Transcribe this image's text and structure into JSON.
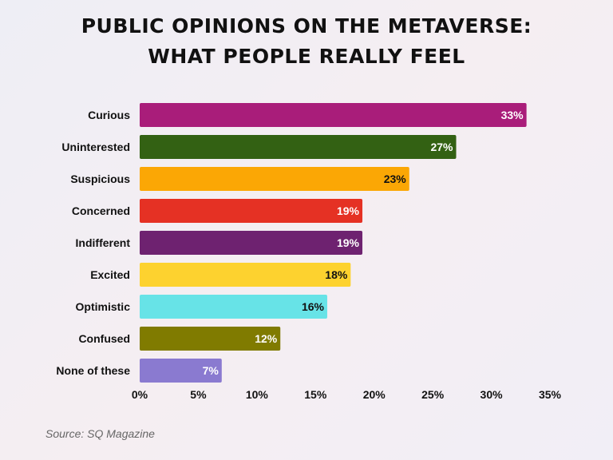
{
  "chart_data": {
    "type": "bar",
    "orientation": "horizontal",
    "title_lines": [
      "PUBLIC OPINIONS ON THE METAVERSE:",
      "WHAT PEOPLE REALLY FEEL"
    ],
    "categories": [
      "Curious",
      "Uninterested",
      "Suspicious",
      "Concerned",
      "Indifferent",
      "Excited",
      "Optimistic",
      "Confused",
      "None of these"
    ],
    "values": [
      33,
      27,
      23,
      19,
      19,
      18,
      16,
      12,
      7
    ],
    "value_labels": [
      "33%",
      "27%",
      "23%",
      "19%",
      "19%",
      "18%",
      "16%",
      "12%",
      "7%"
    ],
    "colors": [
      "#a91d7a",
      "#336113",
      "#fba705",
      "#e53124",
      "#6e2270",
      "#fdd22f",
      "#67e3e7",
      "#807b00",
      "#8a7ad0"
    ],
    "label_colors": [
      "#ffffff",
      "#ffffff",
      "#111111",
      "#ffffff",
      "#ffffff",
      "#111111",
      "#111111",
      "#ffffff",
      "#ffffff"
    ],
    "xlim": [
      0,
      35
    ],
    "xticks": [
      0,
      5,
      10,
      15,
      20,
      25,
      30,
      35
    ],
    "xtick_labels": [
      "0%",
      "5%",
      "10%",
      "15%",
      "20%",
      "25%",
      "30%",
      "35%"
    ],
    "grid": false,
    "legend": "none"
  },
  "source": "Source: SQ Magazine"
}
